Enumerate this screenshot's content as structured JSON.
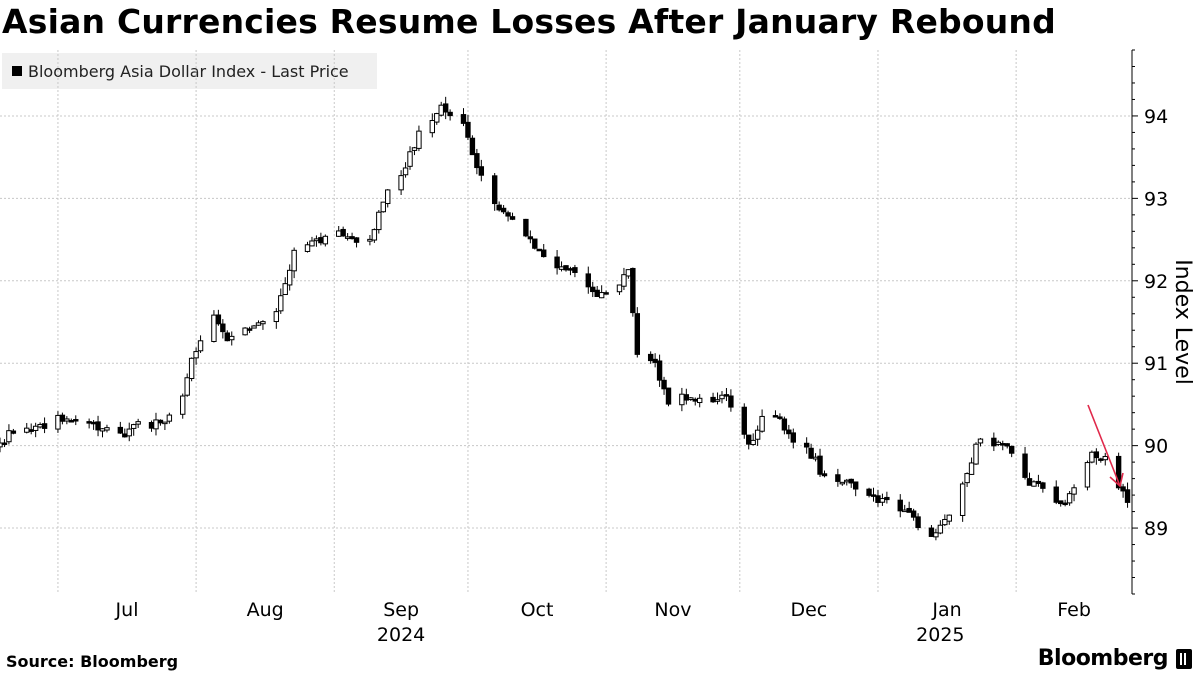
{
  "chart_data": {
    "type": "candlestick",
    "title": "Asian Currencies Resume Losses After January Rebound",
    "legend": {
      "label": "Bloomberg Asia Dollar Index - Last Price",
      "placement": "top-left"
    },
    "ylabel": "Index Level",
    "ylim": [
      88.2,
      94.8
    ],
    "yticks": [
      89,
      90,
      91,
      92,
      93,
      94
    ],
    "grid": true,
    "xlim": [
      "2024-06-18",
      "2025-02-27"
    ],
    "months": [
      {
        "label": "Jul",
        "date": "2024-07-01"
      },
      {
        "label": "Aug",
        "date": "2024-08-01"
      },
      {
        "label": "Sep",
        "date": "2024-09-01"
      },
      {
        "label": "Oct",
        "date": "2024-10-01"
      },
      {
        "label": "Nov",
        "date": "2024-11-01"
      },
      {
        "label": "Dec",
        "date": "2024-12-01"
      },
      {
        "label": "Jan",
        "date": "2025-01-01"
      },
      {
        "label": "Feb",
        "date": "2025-02-01"
      }
    ],
    "years": [
      {
        "label": "2024",
        "date": "2024-09-16"
      },
      {
        "label": "2025",
        "date": "2025-01-15"
      }
    ],
    "close_anchors": [
      [
        "2024-06-18",
        90.02
      ],
      [
        "2024-06-21",
        90.18
      ],
      [
        "2024-06-26",
        90.2
      ],
      [
        "2024-07-01",
        90.35
      ],
      [
        "2024-07-04",
        90.3
      ],
      [
        "2024-07-10",
        90.2
      ],
      [
        "2024-07-15",
        90.1
      ],
      [
        "2024-07-19",
        90.3
      ],
      [
        "2024-07-24",
        90.25
      ],
      [
        "2024-07-29",
        90.6
      ],
      [
        "2024-07-31",
        91.0
      ],
      [
        "2024-08-05",
        91.6
      ],
      [
        "2024-08-08",
        91.25
      ],
      [
        "2024-08-13",
        91.4
      ],
      [
        "2024-08-19",
        91.65
      ],
      [
        "2024-08-23",
        92.35
      ],
      [
        "2024-08-28",
        92.5
      ],
      [
        "2024-09-02",
        92.6
      ],
      [
        "2024-09-04",
        92.5
      ],
      [
        "2024-09-09",
        92.5
      ],
      [
        "2024-09-12",
        93.0
      ],
      [
        "2024-09-17",
        93.4
      ],
      [
        "2024-09-20",
        93.8
      ],
      [
        "2024-09-25",
        94.1
      ],
      [
        "2024-09-30",
        93.9
      ],
      [
        "2024-10-03",
        93.4
      ],
      [
        "2024-10-07",
        92.9
      ],
      [
        "2024-10-11",
        92.8
      ],
      [
        "2024-10-15",
        92.5
      ],
      [
        "2024-10-18",
        92.3
      ],
      [
        "2024-10-23",
        92.15
      ],
      [
        "2024-10-25",
        92.1
      ],
      [
        "2024-10-30",
        91.85
      ],
      [
        "2024-11-04",
        91.95
      ],
      [
        "2024-11-06",
        92.1
      ],
      [
        "2024-11-08",
        91.1
      ],
      [
        "2024-11-12",
        91.0
      ],
      [
        "2024-11-15",
        90.55
      ],
      [
        "2024-11-20",
        90.6
      ],
      [
        "2024-11-25",
        90.5
      ],
      [
        "2024-11-28",
        90.6
      ],
      [
        "2024-12-03",
        90.0
      ],
      [
        "2024-12-06",
        90.35
      ],
      [
        "2024-12-10",
        90.3
      ],
      [
        "2024-12-13",
        90.1
      ],
      [
        "2024-12-17",
        89.9
      ],
      [
        "2024-12-20",
        89.6
      ],
      [
        "2024-12-24",
        89.55
      ],
      [
        "2024-12-30",
        89.4
      ],
      [
        "2025-01-03",
        89.3
      ],
      [
        "2025-01-07",
        89.2
      ],
      [
        "2025-01-10",
        89.05
      ],
      [
        "2025-01-13",
        88.9
      ],
      [
        "2025-01-17",
        89.1
      ],
      [
        "2025-01-21",
        89.7
      ],
      [
        "2025-01-24",
        90.1
      ],
      [
        "2025-01-28",
        90.0
      ],
      [
        "2025-01-31",
        89.95
      ],
      [
        "2025-02-04",
        89.55
      ],
      [
        "2025-02-07",
        89.5
      ],
      [
        "2025-02-11",
        89.3
      ],
      [
        "2025-02-14",
        89.45
      ],
      [
        "2025-02-18",
        89.95
      ],
      [
        "2025-02-20",
        89.85
      ],
      [
        "2025-02-23",
        89.95
      ],
      [
        "2025-02-24",
        89.5
      ],
      [
        "2025-02-26",
        89.35
      ]
    ]
  },
  "footer": {
    "source": "Source: Bloomberg",
    "brand": "Bloomberg"
  },
  "colors": {
    "candle": "#000000",
    "grid": "#c8c8c8",
    "annotation_arrow": "#e0284a",
    "legend_bg": "#f0f0f0"
  }
}
